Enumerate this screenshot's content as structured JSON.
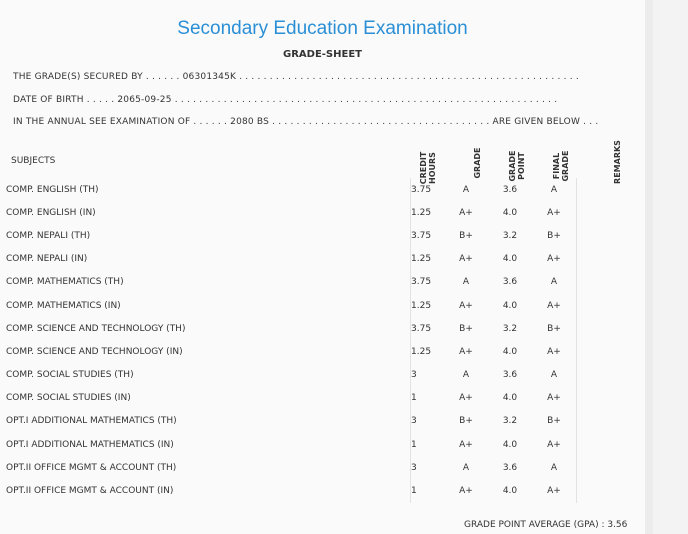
{
  "header": {
    "title": "Secondary Education Examination",
    "subtitle": "GRADE-SHEET"
  },
  "info": {
    "line1": "THE GRADE(S) SECURED BY . . . . . . 06301345K . . . . . . . . . . . . . . . . . . . . . . . . . . . . . . . . . . . . . . . . . . . . . . . . . . . . . . . .",
    "line2": "DATE OF BIRTH . . . . . 2065-09-25 . . . . . . . . . . . . . . . . . . . . . . . . . . . . . . . . . . . . . . . . . . . . . . . . . . . . . . . . . . . . . . .",
    "line3": "IN THE ANNUAL SEE EXAMINATION OF . . . . . . 2080 BS . . . . . . . . . . . . . . . . . . . . . . . . . . . . . . . . . . . . ARE GIVEN BELOW . . ."
  },
  "columns": {
    "subjects": "SUBJECTS",
    "credit_hours": "CREDIT HOURS",
    "grade": "GRADE",
    "grade_point": "GRADE POINT",
    "final_grade": "FINAL GRADE",
    "remarks": "REMARKS"
  },
  "rows": [
    {
      "subject": "COMP. ENGLISH (TH)",
      "credit": "3.75",
      "grade": "A",
      "gp": "3.6",
      "final": "A"
    },
    {
      "subject": "COMP. ENGLISH (IN)",
      "credit": "1.25",
      "grade": "A+",
      "gp": "4.0",
      "final": "A+"
    },
    {
      "subject": "COMP. NEPALI (TH)",
      "credit": "3.75",
      "grade": "B+",
      "gp": "3.2",
      "final": "B+"
    },
    {
      "subject": "COMP. NEPALI (IN)",
      "credit": "1.25",
      "grade": "A+",
      "gp": "4.0",
      "final": "A+"
    },
    {
      "subject": "COMP. MATHEMATICS (TH)",
      "credit": "3.75",
      "grade": "A",
      "gp": "3.6",
      "final": "A"
    },
    {
      "subject": "COMP. MATHEMATICS (IN)",
      "credit": "1.25",
      "grade": "A+",
      "gp": "4.0",
      "final": "A+"
    },
    {
      "subject": "COMP. SCIENCE AND TECHNOLOGY (TH)",
      "credit": "3.75",
      "grade": "B+",
      "gp": "3.2",
      "final": "B+"
    },
    {
      "subject": "COMP. SCIENCE AND TECHNOLOGY (IN)",
      "credit": "1.25",
      "grade": "A+",
      "gp": "4.0",
      "final": "A+"
    },
    {
      "subject": "COMP. SOCIAL STUDIES (TH)",
      "credit": "3",
      "grade": "A",
      "gp": "3.6",
      "final": "A"
    },
    {
      "subject": "COMP. SOCIAL STUDIES (IN)",
      "credit": "1",
      "grade": "A+",
      "gp": "4.0",
      "final": "A+"
    },
    {
      "subject": "OPT.I ADDITIONAL MATHEMATICS (TH)",
      "credit": "3",
      "grade": "B+",
      "gp": "3.2",
      "final": "B+"
    },
    {
      "subject": "OPT.I ADDITIONAL MATHEMATICS (IN)",
      "credit": "1",
      "grade": "A+",
      "gp": "4.0",
      "final": "A+"
    },
    {
      "subject": "OPT.II OFFICE MGMT & ACCOUNT (TH)",
      "credit": "3",
      "grade": "A",
      "gp": "3.6",
      "final": "A"
    },
    {
      "subject": "OPT.II OFFICE MGMT & ACCOUNT (IN)",
      "credit": "1",
      "grade": "A+",
      "gp": "4.0",
      "final": "A+"
    }
  ],
  "footer": {
    "gpa": "GRADE POINT AVERAGE (GPA) : 3.56"
  },
  "colors": {
    "title": "#2b8fd6",
    "text": "#333333",
    "background": "#fafafa"
  }
}
